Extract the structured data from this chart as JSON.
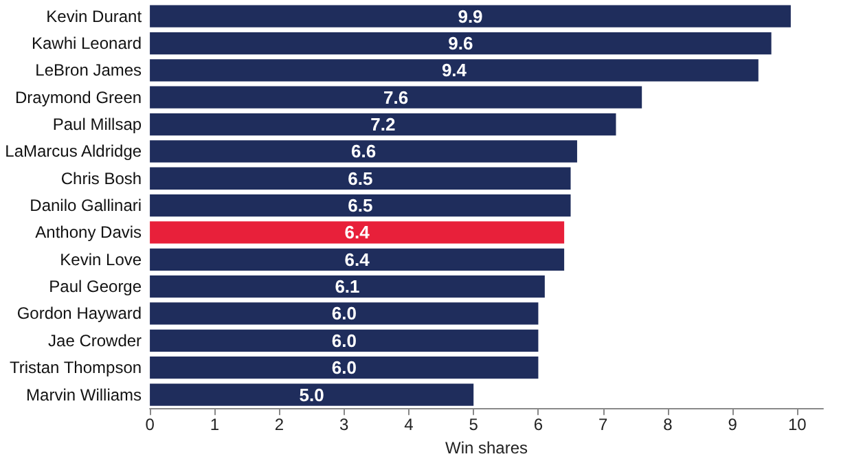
{
  "chart_data": {
    "type": "bar",
    "orientation": "horizontal",
    "xlabel": "Win shares",
    "categories": [
      "Kevin Durant",
      "Kawhi Leonard",
      "LeBron James",
      "Draymond Green",
      "Paul Millsap",
      "LaMarcus Aldridge",
      "Chris Bosh",
      "Danilo Gallinari",
      "Anthony Davis",
      "Kevin Love",
      "Paul George",
      "Gordon Hayward",
      "Jae Crowder",
      "Tristan Thompson",
      "Marvin Williams"
    ],
    "values": [
      9.9,
      9.6,
      9.4,
      7.6,
      7.2,
      6.6,
      6.5,
      6.5,
      6.4,
      6.4,
      6.1,
      6.0,
      6.0,
      6.0,
      5.0
    ],
    "value_labels": [
      "9.9",
      "9.6",
      "9.4",
      "7.6",
      "7.2",
      "6.6",
      "6.5",
      "6.5",
      "6.4",
      "6.4",
      "6.1",
      "6.0",
      "6.0",
      "6.0",
      "5.0"
    ],
    "colors": [
      "#1f2d5c",
      "#1f2d5c",
      "#1f2d5c",
      "#1f2d5c",
      "#1f2d5c",
      "#1f2d5c",
      "#1f2d5c",
      "#1f2d5c",
      "#e8203a",
      "#1f2d5c",
      "#1f2d5c",
      "#1f2d5c",
      "#1f2d5c",
      "#1f2d5c",
      "#1f2d5c"
    ],
    "xlim": [
      0,
      10.4
    ],
    "xticks": [
      0,
      1,
      2,
      3,
      4,
      5,
      6,
      7,
      8,
      9,
      10
    ],
    "grid": false
  }
}
